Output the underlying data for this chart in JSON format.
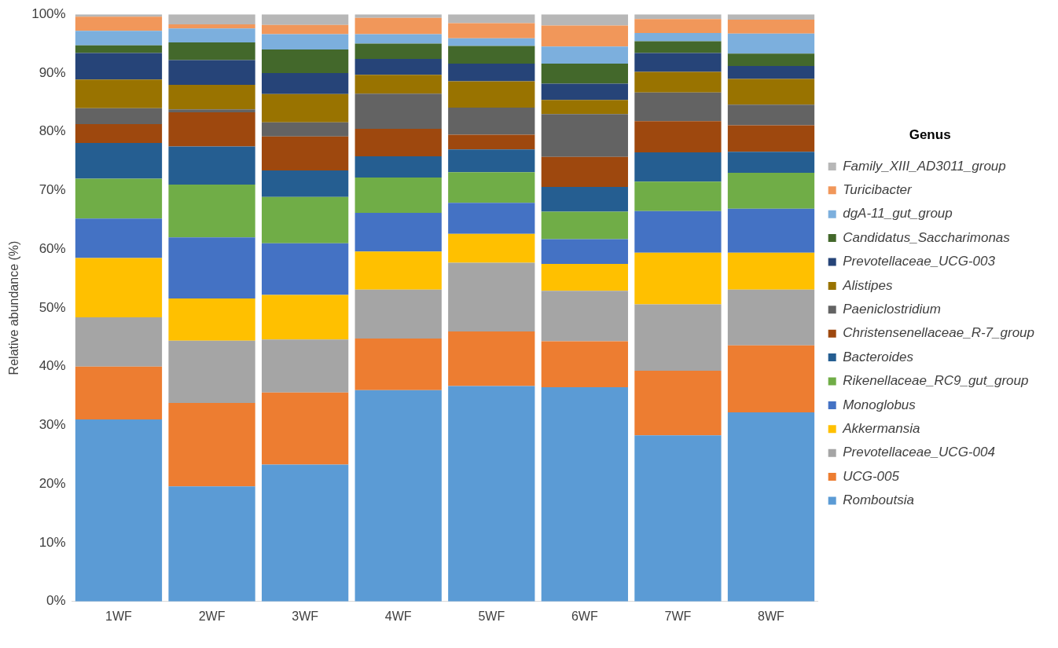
{
  "chart_data": {
    "type": "bar",
    "stacked": true,
    "ylabel": "Relative abundance (%)",
    "legend_title": "Genus",
    "legend": "right",
    "grid": false,
    "categories": [
      "1WF",
      "2WF",
      "3WF",
      "4WF",
      "5WF",
      "6WF",
      "7WF",
      "8WF"
    ],
    "ylim": [
      0,
      100
    ],
    "yticks": [
      {
        "value": 0,
        "label": "0%"
      },
      {
        "value": 10,
        "label": "10%"
      },
      {
        "value": 20,
        "label": "20%"
      },
      {
        "value": 30,
        "label": "30%"
      },
      {
        "value": 40,
        "label": "40%"
      },
      {
        "value": 50,
        "label": "50%"
      },
      {
        "value": 60,
        "label": "60%"
      },
      {
        "value": 70,
        "label": "70%"
      },
      {
        "value": 80,
        "label": "80%"
      },
      {
        "value": 90,
        "label": "90%"
      },
      {
        "value": 100,
        "label": "100%"
      }
    ],
    "series": [
      {
        "name": "Romboutsia",
        "color": "#5b9bd5",
        "values": [
          31,
          19.6,
          23.3,
          36,
          36.7,
          36.5,
          28.3,
          32.2
        ]
      },
      {
        "name": "UCG-005",
        "color": "#ed7d31",
        "values": [
          9,
          14.2,
          12.3,
          8.8,
          9.3,
          7.8,
          11,
          11.4
        ]
      },
      {
        "name": "Prevotellaceae_UCG-004",
        "color": "#a5a5a5",
        "values": [
          8.4,
          10.6,
          9,
          8.3,
          11.7,
          8.6,
          11.3,
          9.5
        ]
      },
      {
        "name": "Akkermansia",
        "color": "#ffc000",
        "values": [
          10.1,
          7.2,
          7.6,
          6.5,
          4.9,
          4.6,
          8.8,
          6.3
        ]
      },
      {
        "name": "Monoglobus",
        "color": "#4472c4",
        "values": [
          6.7,
          10.4,
          8.8,
          6.6,
          5.3,
          4.2,
          7.1,
          7.5
        ]
      },
      {
        "name": "Rikenellaceae_RC9_gut_group",
        "color": "#70ad47",
        "values": [
          6.8,
          9,
          7.9,
          6,
          5.2,
          4.7,
          5,
          6.1
        ]
      },
      {
        "name": "Bacteroides",
        "color": "#255e91",
        "values": [
          6.1,
          6.5,
          4.5,
          3.6,
          3.9,
          4.2,
          5,
          3.6
        ]
      },
      {
        "name": "Christensenellaceae_R-7_group",
        "color": "#9e480e",
        "values": [
          3.2,
          5.8,
          5.8,
          4.7,
          2.5,
          5.1,
          5.3,
          4.5
        ]
      },
      {
        "name": "Paeniclostridium",
        "color": "#636363",
        "values": [
          2.7,
          0.5,
          2.4,
          6,
          4.6,
          7.3,
          4.9,
          3.5
        ]
      },
      {
        "name": "Alistipes",
        "color": "#997300",
        "values": [
          4.9,
          4.2,
          4.8,
          3.2,
          4.5,
          2.4,
          3.5,
          4.4
        ]
      },
      {
        "name": "Prevotellaceae_UCG-003",
        "color": "#264478",
        "values": [
          4.5,
          4.2,
          3.6,
          2.7,
          3,
          2.8,
          3.2,
          2.2
        ]
      },
      {
        "name": "Candidatus_Saccharimonas",
        "color": "#43682b",
        "values": [
          1.3,
          3,
          4,
          2.6,
          3,
          3.4,
          2,
          2.1
        ]
      },
      {
        "name": "dgA-11_gut_group",
        "color": "#7cafdd",
        "values": [
          2.5,
          2.4,
          2.6,
          1.6,
          1.3,
          2.9,
          1.4,
          3.4
        ]
      },
      {
        "name": "Turicibacter",
        "color": "#f1975a",
        "values": [
          2.4,
          0.7,
          1.6,
          2.8,
          2.6,
          3.6,
          2.4,
          2.4
        ]
      },
      {
        "name": "Family_XIII_AD3011_group",
        "color": "#b7b7b7",
        "values": [
          0.4,
          1.7,
          1.8,
          0.6,
          1.5,
          1.9,
          0.8,
          0.9
        ]
      }
    ]
  }
}
